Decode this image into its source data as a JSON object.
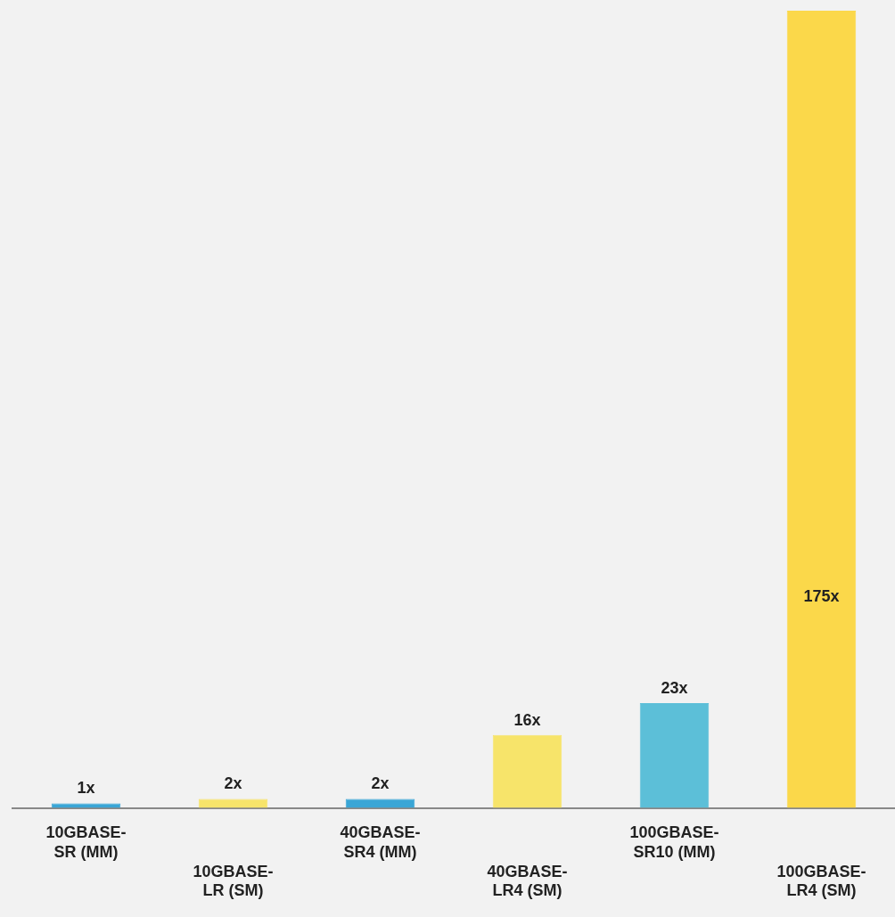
{
  "chart_data": {
    "type": "bar",
    "categories": [
      "10GBASE-SR (MM)",
      "10GBASE-LR (SM)",
      "40GBASE-SR4 (MM)",
      "40GBASE-LR4 (SM)",
      "100GBASE-SR10 (MM)",
      "100GBASE-LR4 (SM)"
    ],
    "values": [
      1,
      2,
      2,
      16,
      23,
      175
    ],
    "colors": [
      "#3aa6d6",
      "#f7e46a",
      "#3aa6d6",
      "#f7e46a",
      "#5cbfd8",
      "#fbd84a"
    ],
    "value_labels": [
      "1x",
      "2x",
      "2x",
      "16x",
      "23x",
      "175x"
    ],
    "grid": false,
    "legend": false
  }
}
